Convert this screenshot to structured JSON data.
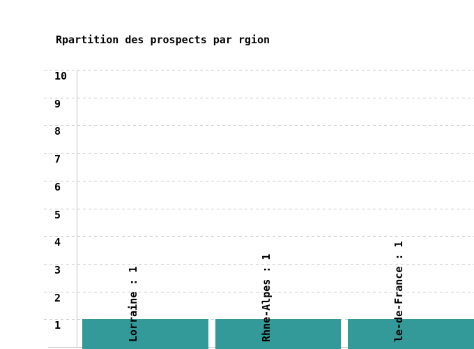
{
  "chart_data": {
    "type": "bar",
    "title": "Rpartition des prospects par rgion",
    "categories": [
      "Lorraine",
      "Rhne-Alpes",
      "le-de-France"
    ],
    "values": [
      1,
      1,
      1
    ],
    "bar_labels": [
      "Lorraine : 1",
      "Rhne-Alpes : 1",
      "le-de-France : 1"
    ],
    "y_ticks": [
      10,
      9,
      8,
      7,
      6,
      5,
      4,
      3,
      2,
      1
    ],
    "ylim": [
      0,
      10
    ],
    "xlabel": "",
    "ylabel": "",
    "grid": "horizontal-dashed",
    "legend": "none",
    "bar_color": "#339999",
    "grid_color": "#c9c9c9",
    "axis_color": "#c0c0c0",
    "text_color": "#000000"
  }
}
